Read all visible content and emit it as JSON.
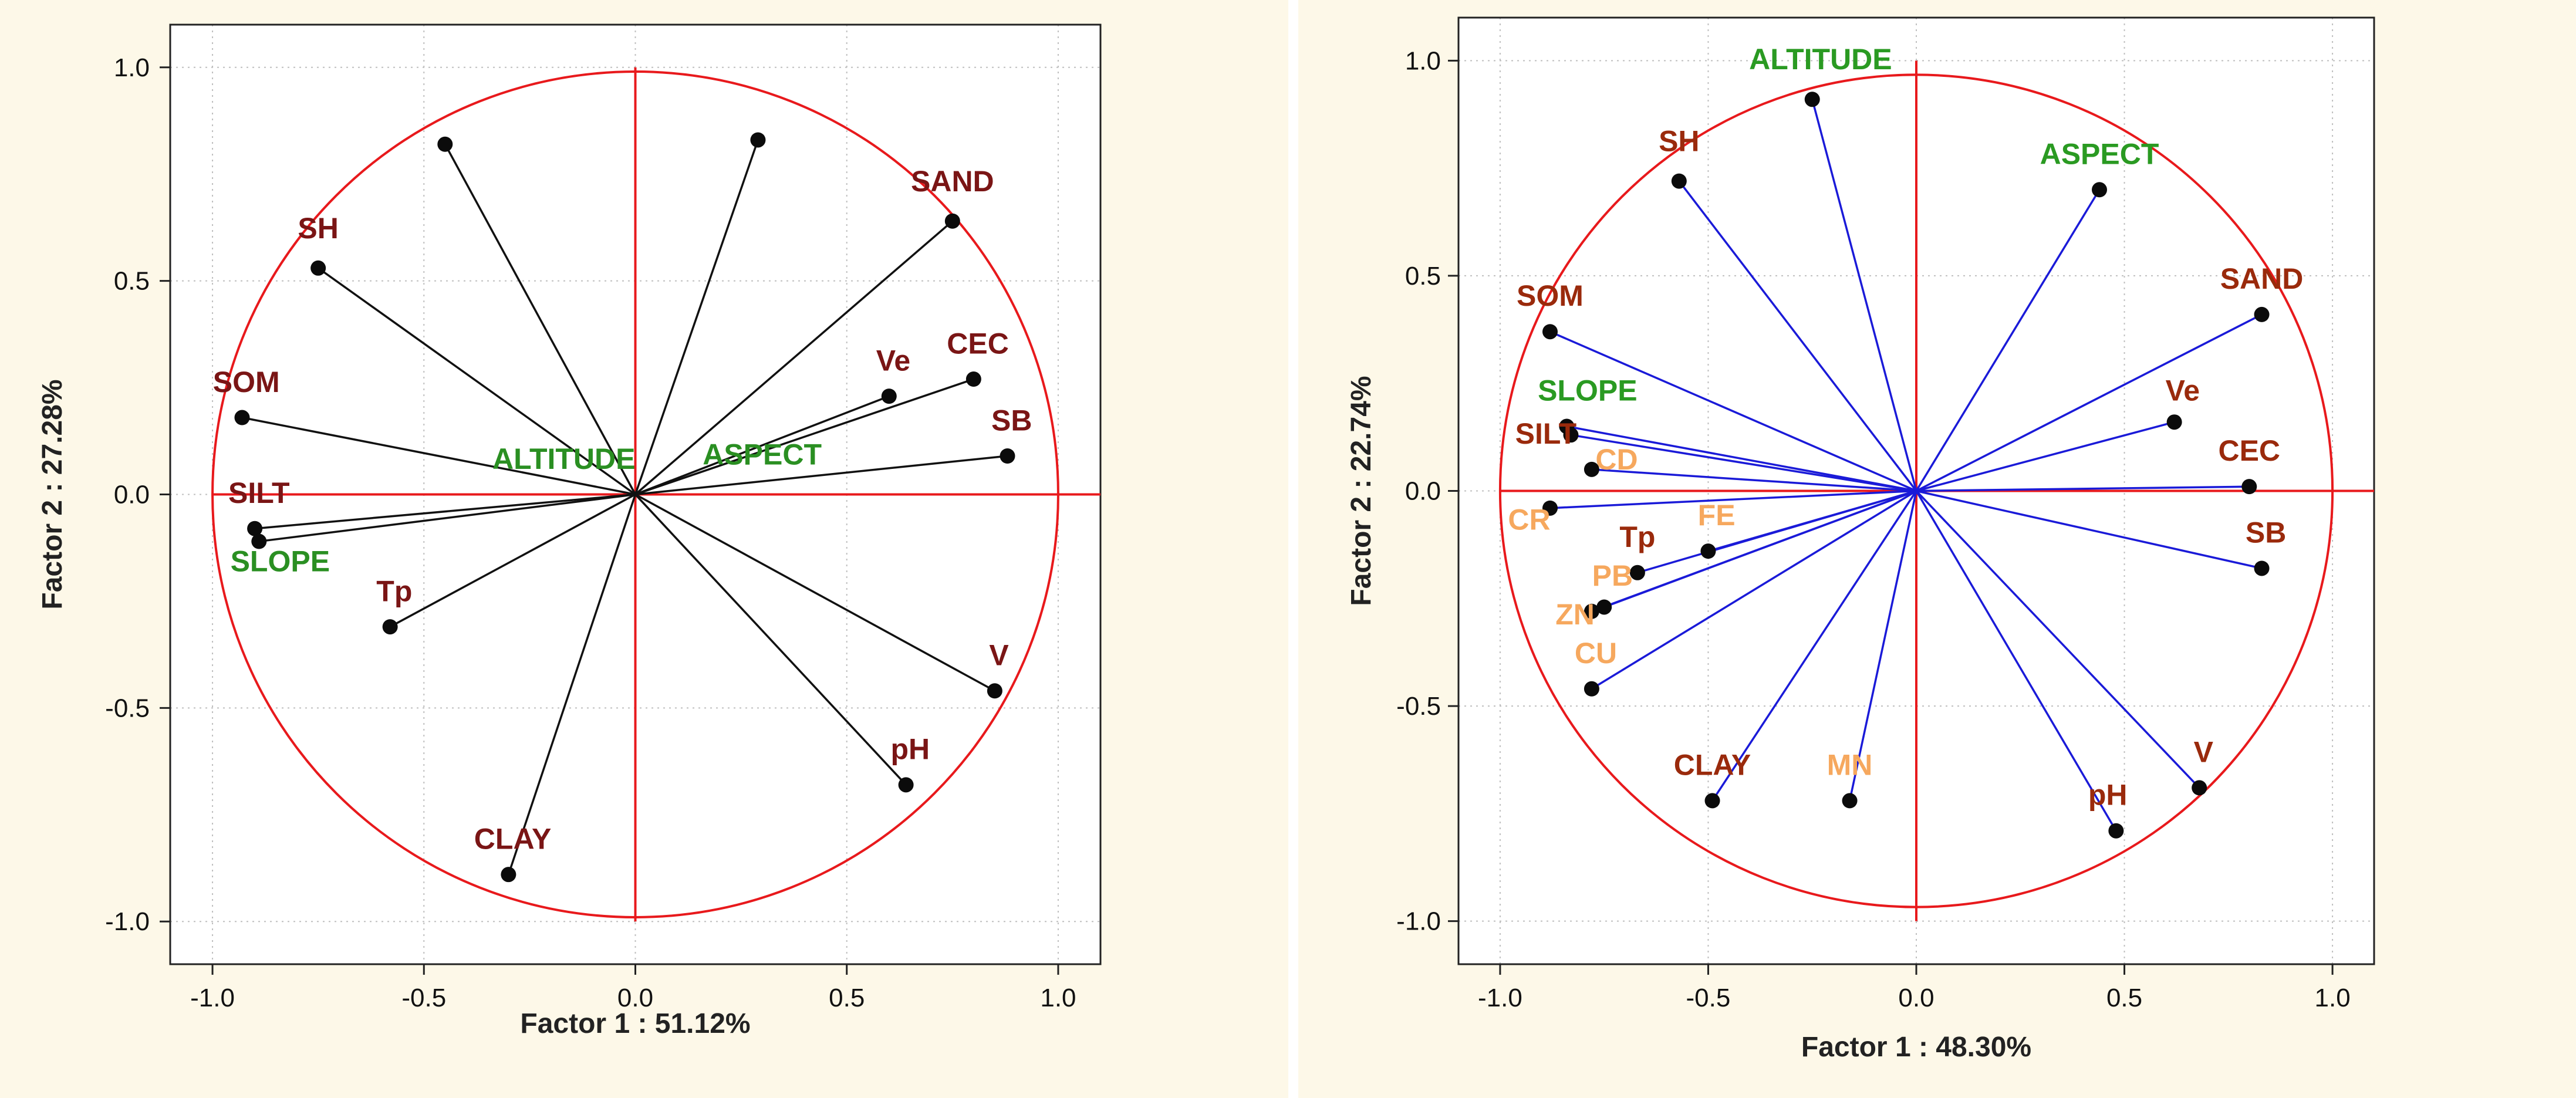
{
  "chart_data": [
    {
      "type": "scatter",
      "subtype": "pca-correlation-circle",
      "xlabel": "Factor 1 : 51.12%",
      "ylabel": "Factor 2 : 27.28%",
      "xlim": [
        -1.1,
        1.1
      ],
      "ylim": [
        -1.1,
        1.1
      ],
      "xticks": [
        "-1.0",
        "-0.5",
        "0.0",
        "0.5",
        "1.0"
      ],
      "yticks": [
        "-1.0",
        "-0.5",
        "0.0",
        "0.5",
        "1.0"
      ],
      "grid": true,
      "colors": {
        "circle": "#e8191c",
        "vector": "#111111",
        "group_env": "#2a8f22",
        "group_soil": "#7a1515"
      },
      "points": [
        {
          "label": "ALTITUDE",
          "x": -0.45,
          "y": 0.82,
          "group": "env",
          "anchor": "end",
          "lx": 0.0,
          "ly": 0.06
        },
        {
          "label": "ASPECT",
          "x": 0.29,
          "y": 0.83,
          "group": "env",
          "anchor": "middle",
          "lx": 0.3,
          "ly": 0.07
        },
        {
          "label": "SAND",
          "x": 0.75,
          "y": 0.64,
          "group": "soil",
          "anchor": "middle",
          "lx": 0.75,
          "ly": 0.71
        },
        {
          "label": "SH",
          "x": -0.75,
          "y": 0.53,
          "group": "soil",
          "anchor": "middle",
          "lx": -0.75,
          "ly": 0.6
        },
        {
          "label": "Ve",
          "x": 0.6,
          "y": 0.23,
          "group": "soil",
          "anchor": "middle",
          "lx": 0.61,
          "ly": 0.29
        },
        {
          "label": "CEC",
          "x": 0.8,
          "y": 0.27,
          "group": "soil",
          "anchor": "middle",
          "lx": 0.81,
          "ly": 0.33
        },
        {
          "label": "SOM",
          "x": -0.93,
          "y": 0.18,
          "group": "soil",
          "anchor": "middle",
          "lx": -0.92,
          "ly": 0.24
        },
        {
          "label": "SB",
          "x": 0.88,
          "y": 0.09,
          "group": "soil",
          "anchor": "middle",
          "lx": 0.89,
          "ly": 0.15
        },
        {
          "label": "SILT",
          "x": -0.9,
          "y": -0.08,
          "group": "soil",
          "anchor": "middle",
          "lx": -0.89,
          "ly": -0.02
        },
        {
          "label": "SLOPE",
          "x": -0.89,
          "y": -0.11,
          "group": "env",
          "anchor": "middle",
          "lx": -0.84,
          "ly": -0.18
        },
        {
          "label": "Tp",
          "x": -0.58,
          "y": -0.31,
          "group": "soil",
          "anchor": "middle",
          "lx": -0.57,
          "ly": -0.25
        },
        {
          "label": "V",
          "x": 0.85,
          "y": -0.46,
          "group": "soil",
          "anchor": "middle",
          "lx": 0.86,
          "ly": -0.4
        },
        {
          "label": "pH",
          "x": 0.64,
          "y": -0.68,
          "group": "soil",
          "anchor": "middle",
          "lx": 0.65,
          "ly": -0.62
        },
        {
          "label": "CLAY",
          "x": -0.3,
          "y": -0.89,
          "group": "soil",
          "anchor": "middle",
          "lx": -0.29,
          "ly": -0.83
        }
      ]
    },
    {
      "type": "scatter",
      "subtype": "pca-correlation-circle",
      "xlabel": "Factor 1 : 48.30%",
      "ylabel": "Factor 2 : 22.74%",
      "xlim": [
        -1.1,
        1.1
      ],
      "ylim": [
        -1.1,
        1.1
      ],
      "xticks": [
        "-1.0",
        "-0.5",
        "0.0",
        "0.5",
        "1.0"
      ],
      "yticks": [
        "-1.0",
        "-0.5",
        "0.0",
        "0.5",
        "1.0"
      ],
      "grid": true,
      "colors": {
        "circle": "#e8191c",
        "vector": "#1a1ad8",
        "group_env": "#2a9a22",
        "group_soil": "#9a2a0c",
        "group_metal": "#f6a85e"
      },
      "points": [
        {
          "label": "ALTITUDE",
          "x": -0.25,
          "y": 0.91,
          "group": "env",
          "anchor": "middle",
          "lx": -0.23,
          "ly": 0.98
        },
        {
          "label": "ASPECT",
          "x": 0.44,
          "y": 0.7,
          "group": "env",
          "anchor": "middle",
          "lx": 0.44,
          "ly": 0.76
        },
        {
          "label": "SH",
          "x": -0.57,
          "y": 0.72,
          "group": "soil",
          "anchor": "middle",
          "lx": -0.57,
          "ly": 0.79
        },
        {
          "label": "SAND",
          "x": 0.83,
          "y": 0.41,
          "group": "soil",
          "anchor": "middle",
          "lx": 0.83,
          "ly": 0.47
        },
        {
          "label": "SOM",
          "x": -0.88,
          "y": 0.37,
          "group": "soil",
          "anchor": "middle",
          "lx": -0.88,
          "ly": 0.43
        },
        {
          "label": "Ve",
          "x": 0.62,
          "y": 0.16,
          "group": "soil",
          "anchor": "middle",
          "lx": 0.64,
          "ly": 0.21
        },
        {
          "label": "SLOPE",
          "x": -0.84,
          "y": 0.15,
          "group": "env",
          "anchor": "middle",
          "lx": -0.79,
          "ly": 0.21
        },
        {
          "label": "SILT",
          "x": -0.83,
          "y": 0.13,
          "group": "soil",
          "anchor": "middle",
          "lx": -0.89,
          "ly": 0.11
        },
        {
          "label": "CD",
          "x": -0.78,
          "y": 0.05,
          "group": "metal",
          "anchor": "middle",
          "lx": -0.72,
          "ly": 0.05
        },
        {
          "label": "CEC",
          "x": 0.8,
          "y": 0.01,
          "group": "soil",
          "anchor": "middle",
          "lx": 0.8,
          "ly": 0.07
        },
        {
          "label": "CR",
          "x": -0.88,
          "y": -0.04,
          "group": "metal",
          "anchor": "middle",
          "lx": -0.93,
          "ly": -0.09
        },
        {
          "label": "FE",
          "x": -0.5,
          "y": -0.14,
          "group": "metal",
          "anchor": "middle",
          "lx": -0.48,
          "ly": -0.08
        },
        {
          "label": "Tp",
          "x": -0.67,
          "y": -0.19,
          "group": "soil",
          "anchor": "middle",
          "lx": -0.67,
          "ly": -0.13
        },
        {
          "label": "SB",
          "x": 0.83,
          "y": -0.18,
          "group": "soil",
          "anchor": "middle",
          "lx": 0.84,
          "ly": -0.12
        },
        {
          "label": "PB",
          "x": -0.75,
          "y": -0.27,
          "group": "metal",
          "anchor": "middle",
          "lx": -0.73,
          "ly": -0.22
        },
        {
          "label": "ZN",
          "x": -0.78,
          "y": -0.28,
          "group": "metal",
          "anchor": "middle",
          "lx": -0.82,
          "ly": -0.31
        },
        {
          "label": "CU",
          "x": -0.78,
          "y": -0.46,
          "group": "metal",
          "anchor": "middle",
          "lx": -0.77,
          "ly": -0.4
        },
        {
          "label": "V",
          "x": 0.68,
          "y": -0.69,
          "group": "soil",
          "anchor": "middle",
          "lx": 0.69,
          "ly": -0.63
        },
        {
          "label": "CLAY",
          "x": -0.49,
          "y": -0.72,
          "group": "soil",
          "anchor": "middle",
          "lx": -0.49,
          "ly": -0.66
        },
        {
          "label": "MN",
          "x": -0.16,
          "y": -0.72,
          "group": "metal",
          "anchor": "middle",
          "lx": -0.16,
          "ly": -0.66
        },
        {
          "label": "pH",
          "x": 0.48,
          "y": -0.79,
          "group": "soil",
          "anchor": "middle",
          "lx": 0.46,
          "ly": -0.73
        }
      ]
    }
  ]
}
